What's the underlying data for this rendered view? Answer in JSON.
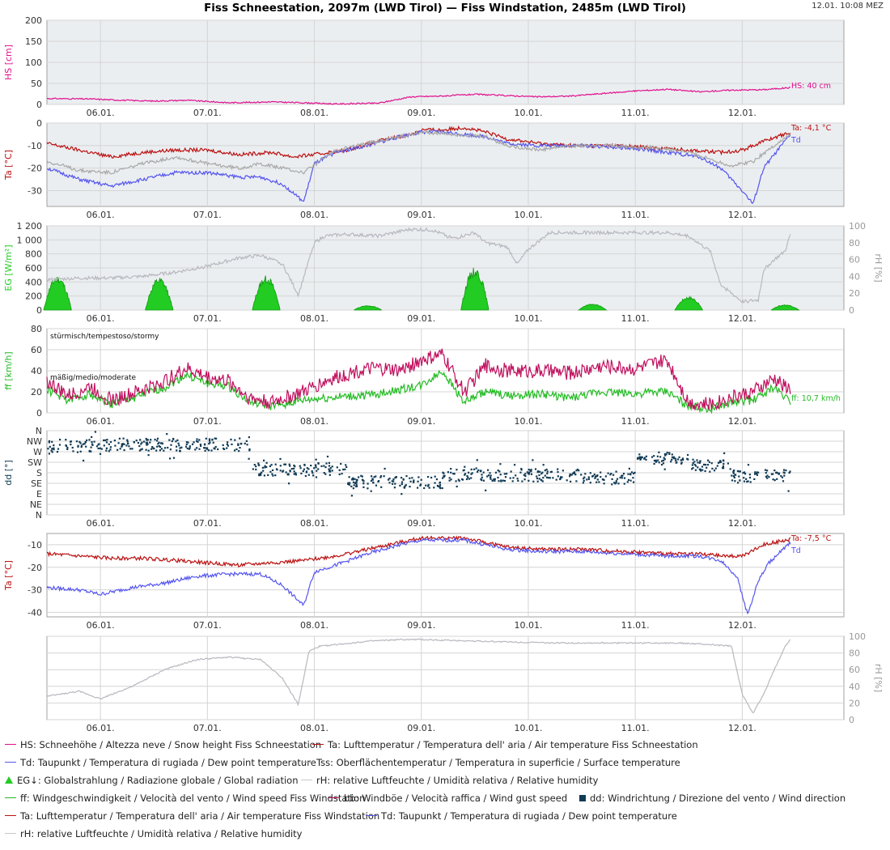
{
  "header": {
    "title": "Fiss Schneestation, 2097m (LWD Tirol) — Fiss Windstation, 2485m (LWD Tirol)",
    "timestamp": "12.01. 10:08 MEZ"
  },
  "colors": {
    "hs": "#e0108e",
    "ta": "#bb1111",
    "td": "#5555ee",
    "tss": "#a8a8a8",
    "eg": "#22cc22",
    "rh": "#b8b8bf",
    "ff": "#22bb22",
    "bb": "#c0105e",
    "dd": "#113a55",
    "panel_bg": "#ebeef1"
  },
  "legend": {
    "row1": [
      {
        "label": "HS: Schneehöhe / Altezza neve / Snow height  Fiss Schneestation",
        "color": "#e0108e",
        "kind": "line"
      },
      {
        "label": "Ta: Lufttemperatur / Temperatura dell' aria / Air temperature  Fiss Schneestation",
        "color": "#bb1111",
        "kind": "line"
      }
    ],
    "row2": [
      {
        "label": "Td: Taupunkt / Temperatura di rugiada / Dew point temperature",
        "color": "#5555ee",
        "kind": "line"
      },
      {
        "label": "Tss: Oberflächentemperatur / Temperatura in superficie / Surface temperature",
        "color": "#a8a8a8",
        "kind": "line"
      }
    ],
    "row3": [
      {
        "label": "EG↓: Globalstrahlung / Radiazione globale / Global radiation",
        "color": "#22cc22",
        "kind": "tri"
      },
      {
        "label": "rH: relative Luftfeuchte / Umidità relativa / Relative humidity",
        "color": "#c8c8c8",
        "kind": "line"
      }
    ],
    "row4": [
      {
        "label": "ff: Windgeschwindigkeit / Velocità del vento / Wind speed  Fiss Windstation",
        "color": "#22bb22",
        "kind": "line"
      },
      {
        "label": "bb: Windböe / Velocità raffica / Wind gust speed",
        "color": "#c0105e",
        "kind": "line"
      },
      {
        "label": "dd: Windrichtung / Direzione del vento / Wind direction",
        "color": "#113a55",
        "kind": "sq"
      }
    ],
    "row5": [
      {
        "label": "Ta: Lufttemperatur / Temperatura dell' aria / Air temperature  Fiss Windstation",
        "color": "#bb1111",
        "kind": "line"
      },
      {
        "label": "Td: Taupunkt / Temperatura di rugiada / Dew point temperature",
        "color": "#5555ee",
        "kind": "line"
      }
    ],
    "row6": [
      {
        "label": "rH: relative Luftfeuchte / Umidità relativa / Relative humidity",
        "color": "#c8c8c8",
        "kind": "line"
      }
    ]
  },
  "chart_data": {
    "x_ticks": [
      "06.01.",
      "07.01.",
      "08.01.",
      "09.01.",
      "10.01.",
      "11.01.",
      "12.01."
    ],
    "x_days": [
      6,
      7,
      8,
      9,
      10,
      11,
      12
    ],
    "x_range_days": [
      5.5,
      12.95
    ],
    "panels": [
      {
        "id": "hs",
        "type": "line",
        "ylabel": "HS [cm]",
        "ylim": [
          0,
          200
        ],
        "yticks": [
          "0",
          "50",
          "100",
          "150",
          "200"
        ],
        "series": [
          {
            "name": "HS",
            "color_key": "hs",
            "x": [
              5.5,
              5.9,
              6.2,
              6.5,
              6.8,
              7.2,
              7.6,
              7.9,
              8.2,
              8.6,
              8.9,
              9.2,
              9.5,
              9.8,
              10.1,
              10.4,
              10.7,
              11.0,
              11.3,
              11.6,
              11.9,
              12.2,
              12.45
            ],
            "y": [
              14,
              13,
              10,
              8,
              10,
              4,
              6,
              4,
              1,
              3,
              18,
              20,
              24,
              21,
              18,
              20,
              26,
              32,
              36,
              30,
              34,
              35,
              40
            ]
          }
        ],
        "end_label": "HS: 40 cm"
      },
      {
        "id": "ta_schnee",
        "type": "line",
        "ylabel": "Ta [°C]",
        "ylim": [
          -37,
          0
        ],
        "yticks": [
          "-30",
          "-20",
          "-10",
          "0"
        ],
        "series": [
          {
            "name": "Ta",
            "color_key": "ta",
            "x": [
              5.5,
              5.8,
              6.1,
              6.4,
              6.7,
              7.0,
              7.3,
              7.6,
              7.8,
              8.0,
              8.3,
              8.6,
              8.9,
              9.0,
              9.2,
              9.4,
              9.6,
              9.8,
              10.1,
              10.4,
              10.8,
              11.2,
              11.5,
              11.8,
              12.0,
              12.2,
              12.45
            ],
            "y": [
              -9,
              -12,
              -15,
              -13,
              -12,
              -12,
              -14,
              -13,
              -15,
              -14,
              -12,
              -8,
              -5,
              -3,
              -3,
              -2,
              -4,
              -7,
              -9,
              -10,
              -10,
              -11,
              -12,
              -13,
              -12,
              -8,
              -4.1
            ]
          },
          {
            "name": "Td",
            "color_key": "td",
            "x": [
              5.5,
              5.8,
              6.1,
              6.4,
              6.7,
              7.0,
              7.3,
              7.5,
              7.7,
              7.9,
              8.0,
              8.2,
              8.5,
              8.8,
              9.0,
              9.2,
              9.4,
              9.6,
              9.8,
              10.1,
              10.5,
              10.9,
              11.3,
              11.6,
              11.8,
              12.0,
              12.1,
              12.2,
              12.45
            ],
            "y": [
              -20,
              -25,
              -28,
              -25,
              -22,
              -22,
              -24,
              -24,
              -27,
              -35,
              -18,
              -13,
              -10,
              -6,
              -4,
              -4,
              -5,
              -6,
              -9,
              -10,
              -10,
              -11,
              -13,
              -15,
              -20,
              -30,
              -36,
              -20,
              -5
            ]
          },
          {
            "name": "Tss",
            "color_key": "tss",
            "x": [
              5.5,
              5.8,
              6.1,
              6.4,
              6.7,
              7.0,
              7.3,
              7.5,
              7.7,
              7.9,
              8.2,
              8.5,
              8.8,
              9.0,
              9.3,
              9.6,
              9.8,
              10.1,
              10.4,
              10.8,
              11.2,
              11.5,
              11.7,
              11.9,
              12.1,
              12.3,
              12.45
            ],
            "y": [
              -17,
              -21,
              -22,
              -18,
              -15,
              -18,
              -20,
              -18,
              -20,
              -22,
              -12,
              -9,
              -6,
              -4,
              -5,
              -6,
              -10,
              -12,
              -10,
              -10,
              -11,
              -13,
              -16,
              -19,
              -17,
              -10,
              -5
            ]
          }
        ],
        "end_labels": [
          "Ta: -4,1 °C",
          "Td"
        ]
      },
      {
        "id": "eg_rh",
        "type": "area+line",
        "ylabel": "EG [W/m²]",
        "ylim": [
          0,
          1200
        ],
        "yticks": [
          "0",
          "200",
          "400",
          "600",
          "800",
          "1 000",
          "1 200"
        ],
        "ylabel_right": "rH [%]",
        "ylim_right": [
          0,
          100
        ],
        "yticks_right": [
          "0",
          "20",
          "40",
          "60",
          "80",
          "100"
        ],
        "radiation_days": [
          {
            "day": 5.6,
            "peak": 450
          },
          {
            "day": 6.55,
            "peak": 420
          },
          {
            "day": 7.55,
            "peak": 450
          },
          {
            "day": 8.5,
            "peak": 60
          },
          {
            "day": 9.5,
            "peak": 560
          },
          {
            "day": 10.6,
            "peak": 80
          },
          {
            "day": 11.5,
            "peak": 180
          },
          {
            "day": 12.4,
            "peak": 70
          }
        ],
        "rh": {
          "name": "rH",
          "color_key": "rh",
          "x": [
            5.5,
            5.8,
            6.1,
            6.4,
            6.7,
            7.0,
            7.3,
            7.5,
            7.7,
            7.85,
            8.0,
            8.1,
            8.3,
            8.6,
            8.9,
            9.1,
            9.3,
            9.5,
            9.6,
            9.8,
            9.9,
            10.0,
            10.2,
            10.5,
            10.9,
            11.3,
            11.5,
            11.7,
            11.8,
            11.9,
            12.0,
            12.15,
            12.2,
            12.3,
            12.4,
            12.45
          ],
          "y": [
            36,
            38,
            38,
            40,
            45,
            52,
            62,
            65,
            55,
            18,
            80,
            88,
            90,
            88,
            96,
            95,
            85,
            92,
            80,
            75,
            55,
            72,
            92,
            92,
            92,
            92,
            88,
            70,
            30,
            20,
            10,
            12,
            48,
            60,
            70,
            90
          ]
        }
      },
      {
        "id": "ff_bb",
        "type": "line",
        "ylabel": "ff [km/h]",
        "ylim": [
          0,
          80
        ],
        "yticks": [
          "0",
          "20",
          "40",
          "60",
          "80"
        ],
        "annotations": [
          "stürmisch/tempestoso/stormy",
          "mäßig/medio/moderate"
        ],
        "series": [
          {
            "name": "ff",
            "color_key": "ff",
            "x": [
              5.5,
              5.7,
              5.9,
              6.1,
              6.3,
              6.6,
              6.8,
              7.0,
              7.2,
              7.4,
              7.6,
              7.9,
              8.1,
              8.4,
              8.6,
              8.8,
              9.0,
              9.2,
              9.4,
              9.6,
              9.8,
              10.1,
              10.4,
              10.7,
              11.0,
              11.3,
              11.5,
              11.7,
              11.9,
              12.1,
              12.3,
              12.45
            ],
            "y": [
              22,
              12,
              18,
              8,
              14,
              24,
              36,
              28,
              25,
              10,
              6,
              12,
              14,
              16,
              18,
              22,
              26,
              40,
              10,
              20,
              16,
              18,
              14,
              20,
              18,
              20,
              6,
              4,
              10,
              12,
              24,
              10.7
            ]
          },
          {
            "name": "bb",
            "color_key": "bb",
            "x": [
              5.5,
              5.7,
              5.9,
              6.1,
              6.3,
              6.6,
              6.8,
              7.0,
              7.2,
              7.4,
              7.6,
              7.9,
              8.1,
              8.4,
              8.6,
              8.8,
              9.0,
              9.2,
              9.4,
              9.6,
              9.8,
              10.1,
              10.4,
              10.7,
              11.0,
              11.3,
              11.5,
              11.7,
              11.9,
              12.1,
              12.3,
              12.45
            ],
            "y": [
              30,
              16,
              25,
              12,
              18,
              30,
              42,
              34,
              30,
              14,
              10,
              20,
              30,
              40,
              42,
              40,
              50,
              55,
              20,
              45,
              40,
              40,
              38,
              45,
              42,
              50,
              10,
              8,
              15,
              20,
              32,
              22
            ]
          }
        ],
        "end_label": "ff: 10,7 km/h"
      },
      {
        "id": "dd",
        "type": "scatter",
        "ylabel": "dd [°]",
        "ylim": [
          0,
          360
        ],
        "yticks": [
          "N",
          "NE",
          "E",
          "SE",
          "S",
          "SW",
          "W",
          "NW",
          "N"
        ],
        "segments": [
          {
            "from": 5.5,
            "to": 6.1,
            "center": 295
          },
          {
            "from": 6.1,
            "to": 7.4,
            "center": 300
          },
          {
            "from": 7.4,
            "to": 8.3,
            "center": 195
          },
          {
            "from": 8.3,
            "to": 9.2,
            "center": 140
          },
          {
            "from": 9.2,
            "to": 10.5,
            "center": 170
          },
          {
            "from": 10.5,
            "to": 11.0,
            "center": 160
          },
          {
            "from": 11.0,
            "to": 11.5,
            "center": 240
          },
          {
            "from": 11.5,
            "to": 11.9,
            "center": 210
          },
          {
            "from": 11.9,
            "to": 12.45,
            "center": 165
          }
        ]
      },
      {
        "id": "ta_wind",
        "type": "line",
        "ylabel": "Ta [°C]",
        "ylim": [
          -42,
          -5
        ],
        "yticks": [
          "-40",
          "-30",
          "-20",
          "-10"
        ],
        "series": [
          {
            "name": "Ta",
            "color_key": "ta",
            "x": [
              5.5,
              5.8,
              6.1,
              6.4,
              6.7,
              7.0,
              7.3,
              7.6,
              7.9,
              8.2,
              8.5,
              8.8,
              9.0,
              9.2,
              9.4,
              9.6,
              9.8,
              10.1,
              10.5,
              10.9,
              11.3,
              11.6,
              11.8,
              12.0,
              12.2,
              12.45
            ],
            "y": [
              -14,
              -15,
              -16,
              -16,
              -17,
              -18,
              -19,
              -18,
              -17,
              -15,
              -12,
              -9,
              -7,
              -7,
              -7,
              -9,
              -11,
              -12,
              -12,
              -13,
              -14,
              -14,
              -15,
              -15,
              -10,
              -7.5
            ]
          },
          {
            "name": "Td",
            "color_key": "td",
            "x": [
              5.5,
              5.8,
              6.0,
              6.3,
              6.6,
              6.9,
              7.2,
              7.5,
              7.7,
              7.9,
              8.0,
              8.2,
              8.5,
              8.8,
              9.0,
              9.2,
              9.4,
              9.6,
              9.8,
              10.1,
              10.5,
              10.9,
              11.3,
              11.6,
              11.8,
              11.95,
              12.05,
              12.15,
              12.25,
              12.45
            ],
            "y": [
              -29,
              -30,
              -32,
              -29,
              -27,
              -24,
              -23,
              -23,
              -28,
              -37,
              -22,
              -19,
              -14,
              -10,
              -8,
              -8,
              -8,
              -10,
              -12,
              -13,
              -13,
              -14,
              -15,
              -15,
              -17,
              -24,
              -41,
              -26,
              -18,
              -9
            ]
          }
        ],
        "end_labels": [
          "Ta: -7,5 °C",
          "Td"
        ]
      },
      {
        "id": "rh_wind",
        "type": "line",
        "ylabel_right": "rH [%]",
        "ylim": [
          0,
          100
        ],
        "yticks_right": [
          "0",
          "20",
          "40",
          "60",
          "80",
          "100"
        ],
        "series": [
          {
            "name": "rH",
            "color_key": "rh",
            "x": [
              5.5,
              5.8,
              6.0,
              6.3,
              6.6,
              6.9,
              7.2,
              7.5,
              7.7,
              7.85,
              7.95,
              8.05,
              8.2,
              8.5,
              8.8,
              9.0,
              9.3,
              9.6,
              9.9,
              10.2,
              10.6,
              11.0,
              11.4,
              11.7,
              11.9,
              12.0,
              12.1,
              12.2,
              12.3,
              12.4,
              12.45
            ],
            "y": [
              28,
              34,
              25,
              40,
              60,
              72,
              75,
              72,
              50,
              18,
              82,
              88,
              90,
              94,
              96,
              96,
              95,
              94,
              93,
              92,
              92,
              92,
              92,
              90,
              88,
              30,
              8,
              30,
              60,
              88,
              96
            ]
          }
        ]
      }
    ]
  }
}
